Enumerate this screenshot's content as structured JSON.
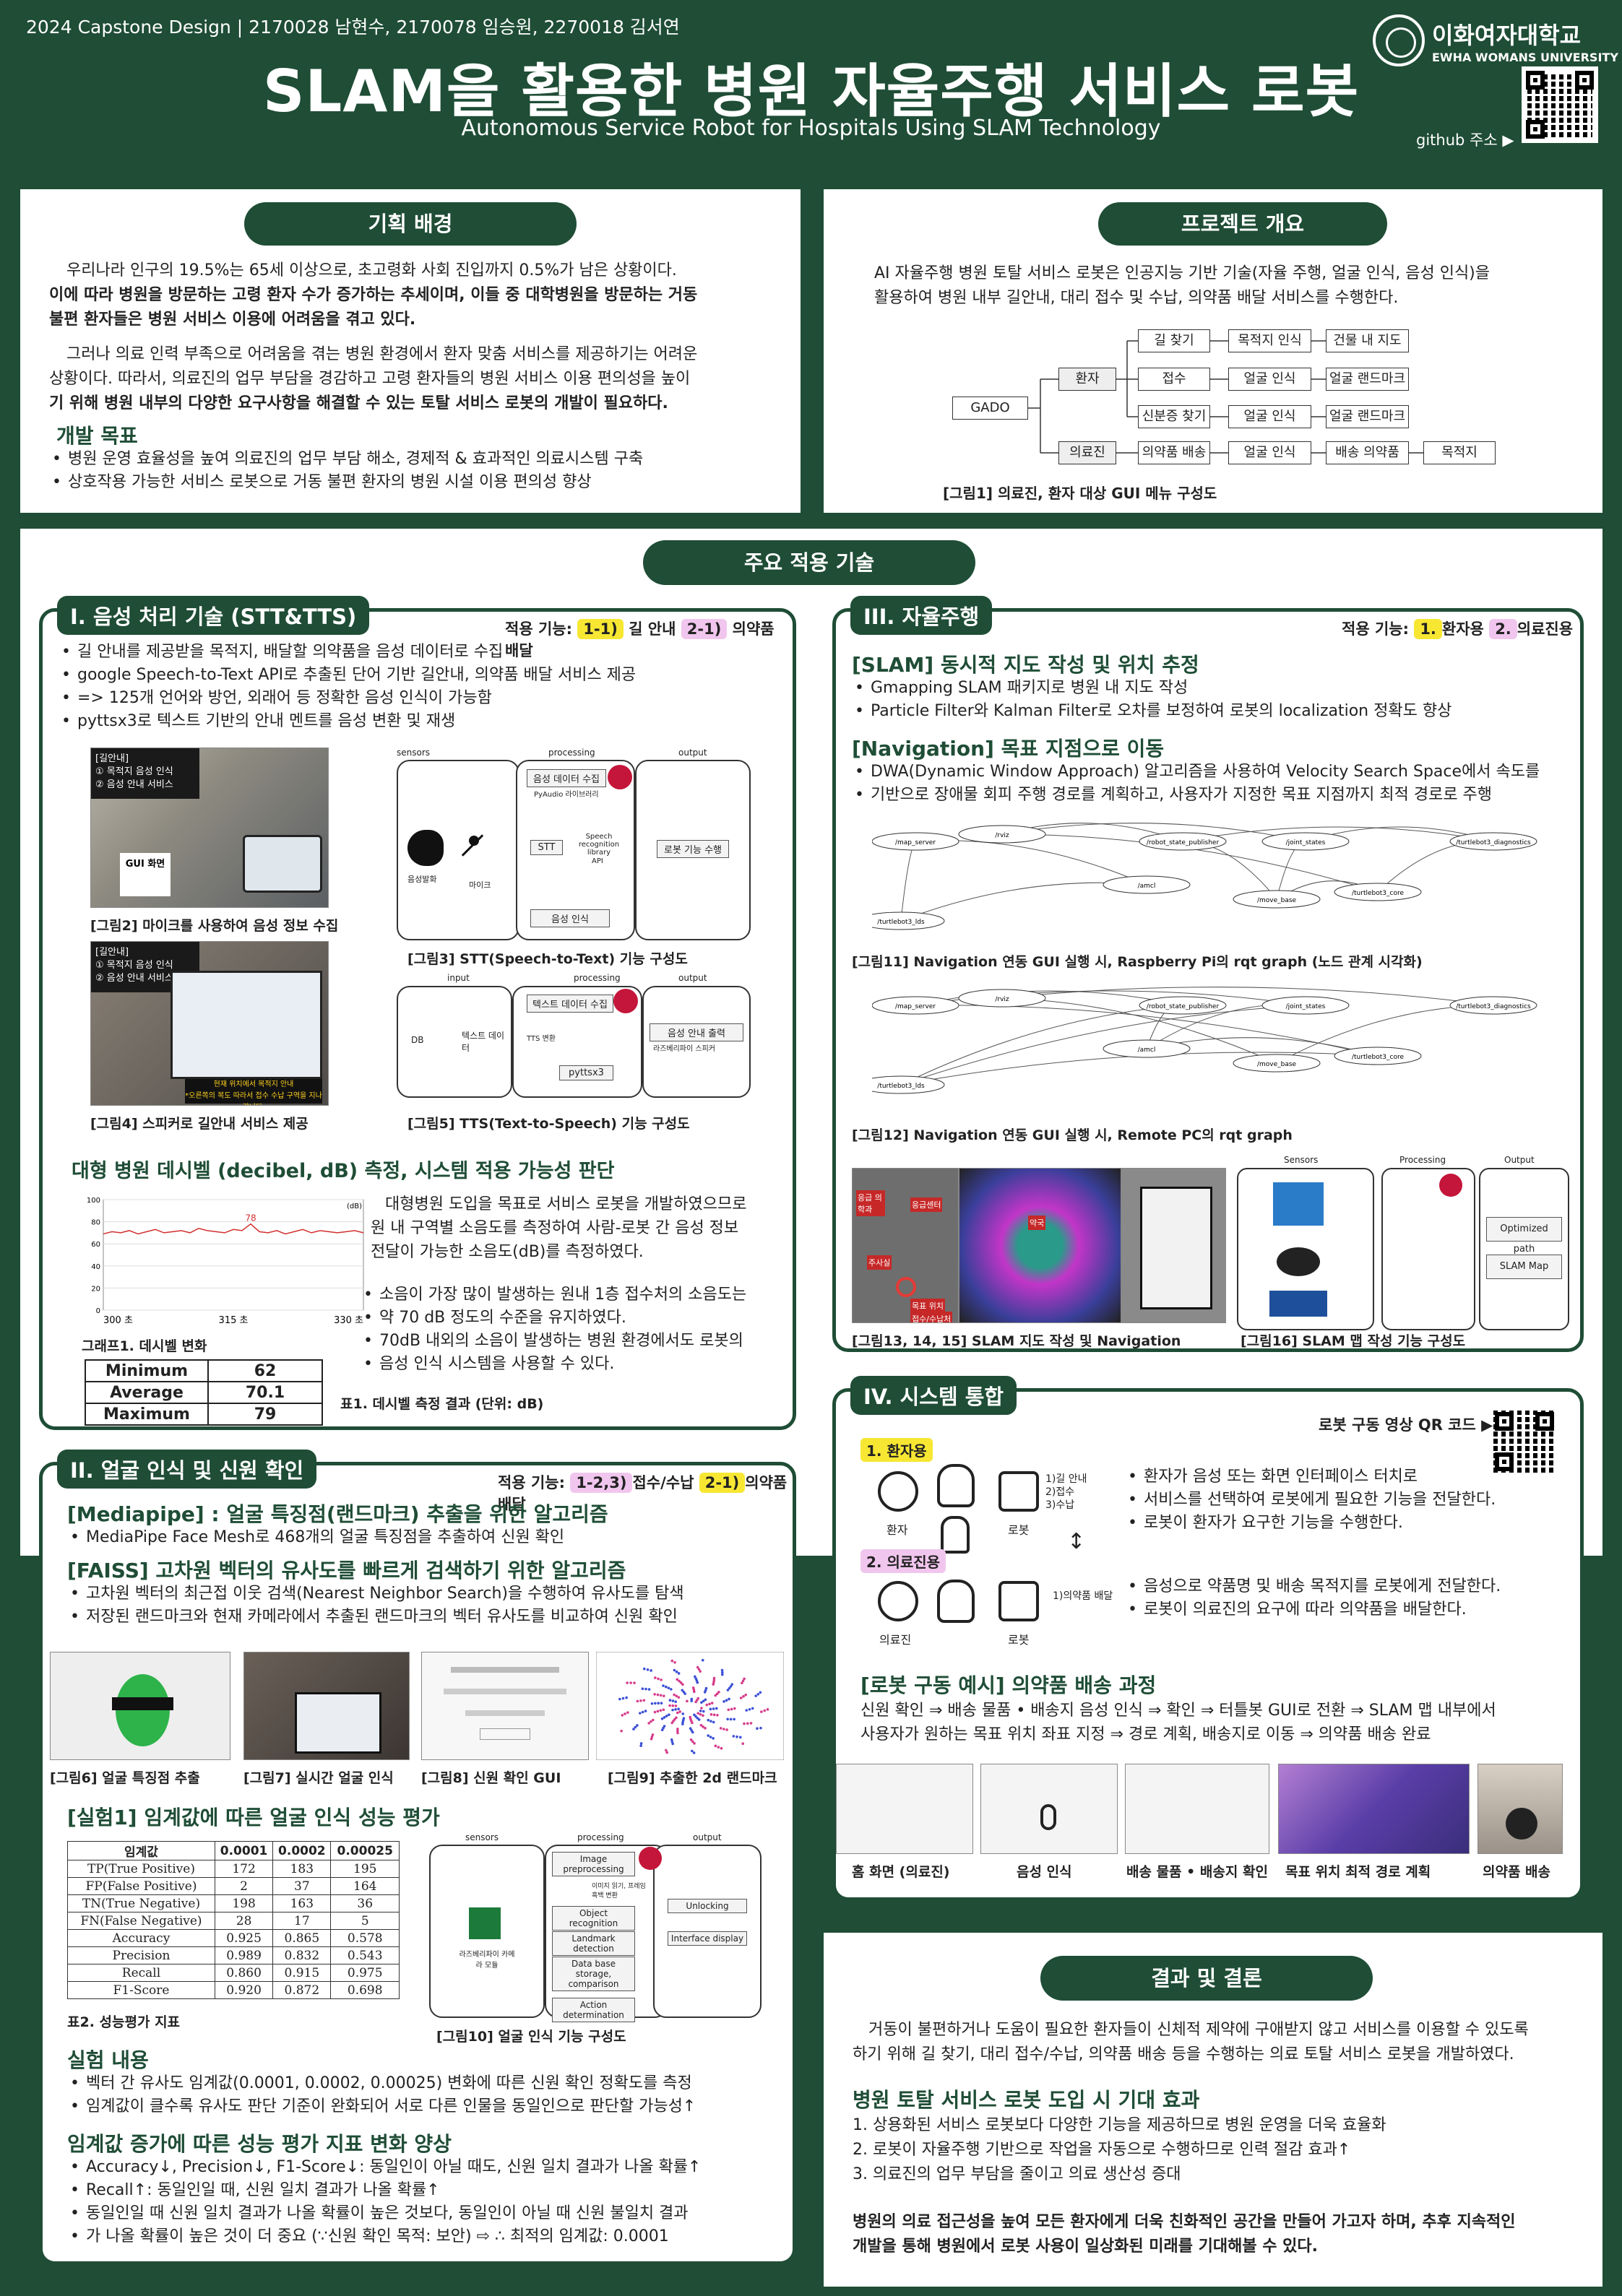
{
  "header": {
    "authors": "2024 Capstone Design | 2170028 남현수, 2170078 임승원, 2270018 김서연",
    "title": "SLAM을 활용한 병원 자율주행 서비스 로봇",
    "subtitle": "Autonomous Service Robot for Hospitals Using SLAM Technology",
    "univ_kr": "이화여자대학교",
    "univ_en": "EWHA WOMANS UNIVERSITY",
    "github": "github 주소 ▶"
  },
  "background": {
    "title": "기획 배경",
    "p1a": "우리나라 인구의 19.5%는 65세 이상으로, 초고령화 사회 진입까지 0.5%가 남은 상황이다.",
    "p1b": "이에 따라 병원을 방문하는 고령 환자 수가 증가하는 추세이며, 이들 중 대학병원을 방문하는 거동",
    "p1c": "불편 환자들은 병원 서비스 이용에 어려움을 겪고 있다.",
    "p2a": "그러나 의료 인력 부족으로 어려움을 겪는 병원 환경에서 환자 맞춤 서비스를 제공하기는 어려운",
    "p2b": "상황이다. 따라서, 의료진의 업무 부담을 경감하고 고령 환자들의 병원 서비스 이용 편의성을 높이",
    "p2c": "기 위해 병원 내부의 다양한 요구사항을 해결할 수 있는 토탈 서비스 로봇의 개발이 필요하다.",
    "goal_title": "개발 목표",
    "goals": [
      "병원 운영 효율성을 높여 의료진의 업무 부담 해소, 경제적 & 효과적인 의료시스템 구축",
      "상호작용 가능한 서비스 로봇으로 거동 불편 환자의 병원 시설 이용 편의성 향상"
    ]
  },
  "overview": {
    "title": "프로젝트 개요",
    "p1": "AI 자율주행 병원 토탈 서비스 로봇은 인공지능 기반 기술(자율 주행, 얼굴 인식, 음성 인식)을",
    "p2": "활용하여 병원 내부 길안내, 대리 접수 및 수납, 의약품 배달 서비스를 수행한다.",
    "gui": {
      "root": "GADO",
      "patient": "환자",
      "staff": "의료진",
      "r1": [
        "길 찾기",
        "목적지 인식",
        "건물 내 지도"
      ],
      "r2": [
        "접수",
        "얼굴 인식",
        "얼굴 랜드마크"
      ],
      "r3": [
        "신분증 찾기",
        "얼굴 인식",
        "얼굴 랜드마크"
      ],
      "r4": [
        "의약품 배송",
        "얼굴 인식",
        "배송 의약품",
        "목적지"
      ]
    },
    "caption": "[그림1] 의료진, 환자 대상 GUI 메뉴 구성도"
  },
  "main_title": "주요 적용 기술",
  "s1": {
    "tab": "I. 음성 처리 기술 (STT&TTS)",
    "apply_label": "적용 기능:",
    "tag1": "1-1)",
    "tag1_text": "길 안내",
    "tag2": "2-1)",
    "tag2_text": "의약품 배달",
    "bullets": [
      "길 안내를 제공받을 목적지, 배달할 의약품을 음성 데이터로 수집",
      "google Speech-to-Text API로 추출된 단어 기반 길안내, 의약품 배달 서비스 제공",
      "=> 125개 언어와 방언, 외래어 등 정확한 음성 인식이 가능함",
      "pyttsx3로 텍스트 기반의 안내 멘트를 음성 변환 및 재생"
    ],
    "cap2": "[그림2] 마이크를 사용하여 음성 정보 수집",
    "cap3": "[그림3] STT(Speech-to-Text) 기능 구성도",
    "cap4": "[그림4] 스피커로 길안내 서비스 제공",
    "cap5": "[그림5] TTS(Text-to-Speech) 기능 구성도",
    "gui_label": "GUI 화면",
    "photo_tags": [
      "[길안내]",
      "① 목적지 음성 인식",
      "② 음성 안내 서비스"
    ],
    "photo_tags2": [
      "[길안내]",
      "① 목적지 음성 인식",
      "② 음성 안내 서비스"
    ],
    "bubble": "현재 위치에서 목적지 안내",
    "bubble2": "*오른쪽의 복도 따라서 접수 수납 구역을 지나갑니다.",
    "stt": {
      "sensors": "sensors",
      "processing": "processing",
      "output": "output",
      "voice": "음성발화",
      "mic": "마이크",
      "collect": "음성 데이터 수집",
      "pyaudio": "PyAudio 라이브러리",
      "stt": "STT",
      "lib": "Speech recognition library",
      "api": "API",
      "recognize": "음성 인식",
      "robot": "로봇 기능 수행"
    },
    "tts": {
      "input": "input",
      "processing": "processing",
      "output": "output",
      "db": "DB",
      "textdata": "텍스트 데이터",
      "collect": "텍스트 데이터 수집",
      "ttsconv": "TTS 변환",
      "pyttsx3": "pyttsx3",
      "out": "음성 안내 출력",
      "speaker": "라즈베리파이 스피커"
    },
    "db_title": "대형 병원 데시벨 (decibel, dB) 측정, 시스템 적용 가능성 판단",
    "db_p": [
      "대형병원 도입을 목표로 서비스 로봇을 개발하였으므로",
      "원 내 구역별 소음도를 측정하여 사람-로봇 간 음성 정보",
      "전달이 가능한 소음도(dB)를 측정하였다."
    ],
    "db_bul": [
      "소음이 가장 많이 발생하는 원내 1층 접수처의 소음도는",
      "약 70 dB 정도의 수준을 유지하였다.",
      "70dB 내외의 소음이 발생하는 병원 환경에서도 로봇의",
      "음성 인식 시스템을 사용할 수 있다."
    ],
    "graph_cap": "그래프1. 데시벨 변화",
    "table_cap": "표1. 데시벨 측정 결과 (단위: dB)",
    "dtable": [
      [
        "Minimum",
        "62"
      ],
      [
        "Average",
        "70.1"
      ],
      [
        "Maximum",
        "79"
      ]
    ]
  },
  "chart_data": {
    "type": "line",
    "title": "",
    "xlabel": "",
    "ylabel": "",
    "unit": "(dB)",
    "x_ticks": [
      "300 초",
      "315 초",
      "330 초"
    ],
    "y_ticks": [
      "100",
      "80",
      "60",
      "40",
      "20",
      "0"
    ],
    "ylim": [
      0,
      100
    ],
    "peak_label": "78",
    "series": [
      {
        "name": "",
        "x": [
          300,
          301,
          302,
          303,
          304,
          305,
          306,
          307,
          308,
          309,
          310,
          311,
          312,
          313,
          314,
          315,
          316,
          317,
          318,
          319,
          320,
          321,
          322,
          323,
          324,
          325,
          326,
          327,
          328,
          329,
          330
        ],
        "values": [
          69,
          71,
          70,
          72,
          69,
          71,
          73,
          70,
          71,
          72,
          70,
          74,
          72,
          71,
          70,
          73,
          72,
          78,
          71,
          70,
          72,
          69,
          71,
          73,
          70,
          72,
          71,
          70,
          71,
          72,
          70
        ]
      }
    ]
  },
  "s2": {
    "tab": "II. 얼굴 인식 및 신원 확인",
    "apply_label": "적용 기능:",
    "tag1": "1-2,3)",
    "tag1_text": "접수/수납",
    "tag2": "2-1)",
    "tag2_text": "의약품 배달",
    "h1": "[Mediapipe] : 얼굴 특징점(랜드마크) 추출을 위한 알고리즘",
    "b1": [
      "MediaPipe Face Mesh로 468개의 얼굴 특징점을 추출하여 신원 확인"
    ],
    "h2": "[FAISS] 고차원 벡터의 유사도를 빠르게 검색하기 위한 알고리즘",
    "b2": [
      "고차원 벡터의 최근접 이웃 검색(Nearest Neighbor Search)을 수행하여 유사도를 탐색",
      "저장된 랜드마크와 현재 카메라에서 추출된 랜드마크의 벡터 유사도를 비교하여 신원 확인"
    ],
    "cap6": "[그림6] 얼굴 특징점 추출",
    "cap7": "[그림7] 실시간 얼굴 인식",
    "cap8": "[그림8] 신원 확인 GUI",
    "cap9": "[그림9] 추출한 2d 랜드마크",
    "exp_title": "[실험1] 임계값에 따른 얼굴 인식 성능 평가",
    "ptable": {
      "head": [
        "임계값",
        "0.0001",
        "0.0002",
        "0.00025"
      ],
      "rows": [
        [
          "TP(True Positive)",
          "172",
          "183",
          "195"
        ],
        [
          "FP(False Positive)",
          "2",
          "37",
          "164"
        ],
        [
          "TN(True Negative)",
          "198",
          "163",
          "36"
        ],
        [
          "FN(False Negative)",
          "28",
          "17",
          "5"
        ],
        [
          "Accuracy",
          "0.925",
          "0.865",
          "0.578"
        ],
        [
          "Precision",
          "0.989",
          "0.832",
          "0.543"
        ],
        [
          "Recall",
          "0.860",
          "0.915",
          "0.975"
        ],
        [
          "F1-Score",
          "0.920",
          "0.872",
          "0.698"
        ]
      ]
    },
    "table_cap": "표2. 성능평가 지표",
    "cap10": "[그림10] 얼굴 인식 기능 구성도",
    "fr": {
      "sensors": "sensors",
      "processing": "processing",
      "output": "output",
      "cam": "라즈베리파이 카메라 모듈",
      "s1": "Image preprocessing",
      "s1b": "이미지 읽기, 프레임 흑백 변환",
      "s2": "Object recognition",
      "s3": "Landmark detection",
      "s4": "Data base storage, comparison",
      "s5": "Action determination",
      "o1": "Unlocking",
      "o2": "Interface display"
    },
    "exp_sub": "실험 내용",
    "exp_b": [
      "벡터 간 유사도 임계값(0.0001, 0.0002, 0.00025) 변화에 따른 신원 확인 정확도를 측정",
      "임계값이 클수록 유사도 판단 기준이 완화되어 서로 다른 인물을 동일인으로 판단할 가능성↑"
    ],
    "inc_title": "임계값 증가에 따른 성능 평가 지표 변화 양상",
    "inc_b": [
      "Accuracy↓, Precision↓, F1-Score↓: 동일인이 아닐 때도, 신원 일치 결과가 나올 확률↑",
      "Recall↑: 동일인일 때, 신원 일치 결과가 나올 확률↑",
      "동일인일 때 신원 일치 결과가 나올 확률이 높은 것보다, 동일인이 아닐 때 신원 불일치 결과",
      "가 나올 확률이 높은 것이 더 중요 (∵신원 확인 목적: 보안) ⇨ ∴ 최적의 임계값: 0.0001"
    ]
  },
  "s3": {
    "tab": "III. 자율주행",
    "apply_label": "적용 기능:",
    "tag1": "1.",
    "tag1_text": "환자용",
    "tag2": "2.",
    "tag2_text": "의료진용",
    "h1": "[SLAM] 동시적 지도 작성 및 위치 추정",
    "b1": [
      "Gmapping SLAM 패키지로 병원 내 지도 작성",
      "Particle Filter와 Kalman Filter로 오차를 보정하여 로봇의 localization 정확도 향상"
    ],
    "h2": "[Navigation] 목표 지점으로 이동",
    "b2": [
      "DWA(Dynamic Window Approach) 알고리즘을 사용하여 Velocity Search Space에서 속도를",
      "기반으로 장애물 회피 주행 경로를 계획하고, 사용자가 지정한 목표 지점까지 최적 경로로 주행"
    ],
    "cap11": "[그림11] Navigation 연동 GUI 실행 시, Raspberry Pi의 rqt graph (노드 관계 시각화)",
    "cap12": "[그림12] Navigation 연동 GUI 실행 시, Remote PC의 rqt graph",
    "cap13": "[그림13, 14, 15] SLAM 지도 작성 및 Navigation",
    "cap16": "[그림16] SLAM 맵 작성 기능 구성도",
    "map_labels": [
      "응급 의학과",
      "응급센터",
      "주사실",
      "약국",
      "목표 위치",
      "접수/수납처"
    ],
    "nodes": [
      "/map_server",
      "/rviz",
      "/robot_state_publisher",
      "/amcl",
      "/move_base",
      "/turtlebot3_core",
      "/turtlebot3_lds",
      "/turtlebot3_diagnostics",
      "/joint_states"
    ],
    "slam": {
      "sensors": "Sensors",
      "processing": "Processing",
      "output": "Output",
      "p1": "Optimized path",
      "p2": "SLAM Map"
    }
  },
  "s4": {
    "tab": "IV. 시스템 통합",
    "qr_label": "로봇 구동 영상 QR 코드 ▶",
    "tag1": "1. 환자용",
    "tag2": "2. 의료진용",
    "patient": "환자",
    "robot": "로봇",
    "staff": "의료진",
    "robot2": "로봇",
    "menu1": [
      "1)길 안내",
      "2)접수",
      "3)수납"
    ],
    "menu2": "1)의약품 배달",
    "b1": [
      "환자가 음성 또는 화면 인터페이스 터치로",
      "서비스를 선택하여 로봇에게 필요한 기능을 전달한다.",
      "로봇이 환자가 요구한 기능을 수행한다."
    ],
    "b2": [
      "음성으로 약품명 및 배송 목적지를 로봇에게 전달한다.",
      "로봇이 의료진의 요구에 따라 의약품을 배달한다."
    ],
    "ex_title": "[로봇 구동 예시] 의약품 배송 과정",
    "ex_p1": "신원 확인 ⇒ 배송 물품 • 배송지 음성 인식 ⇒ 확인 ⇒ 터틀봇 GUI로 전환 ⇒ SLAM 맵 내부에서",
    "ex_p2": "사용자가 원하는 목표 위치 좌표 지정 ⇒ 경로 계획, 배송지로 이동 ⇒ 의약품 배송 완료",
    "steps": [
      "홈 화면 (의료진)",
      "음성 인식",
      "배송 물품 • 배송지 확인",
      "목표 위치 최적 경로 계획",
      "의약품 배송"
    ]
  },
  "conclusion": {
    "title": "결과 및 결론",
    "p1": "거동이 불편하거나 도움이 필요한 환자들이 신체적 제약에 구애받지 않고 서비스를 이용할 수 있도록",
    "p2": "하기 위해 길 찾기, 대리 접수/수납, 의약품 배송 등을 수행하는 의료 토탈 서비스 로봇을 개발하였다.",
    "h": "병원 토탈 서비스 로봇 도입 시 기대 효과",
    "items": [
      "1. 상용화된 서비스 로봇보다 다양한 기능을 제공하므로 병원 운영을 더욱 효율화",
      "2. 로봇이 자율주행 기반으로 작업을 자동으로 수행하므로 인력 절감 효과↑",
      "3. 의료진의 업무 부담을 줄이고 의료 생산성 증대"
    ],
    "final1": "병원의 의료 접근성을 높여 모든 환자에게 더욱 친화적인 공간을 만들어 가고자 하며, 추후 지속적인",
    "final2": "개발을 통해 병원에서 로봇 사용이 일상화된 미래를 기대해볼 수 있다."
  },
  "colors": {
    "green": "#1f4d36",
    "yellow": "#f7e733",
    "pink": "#f1c6ee"
  }
}
